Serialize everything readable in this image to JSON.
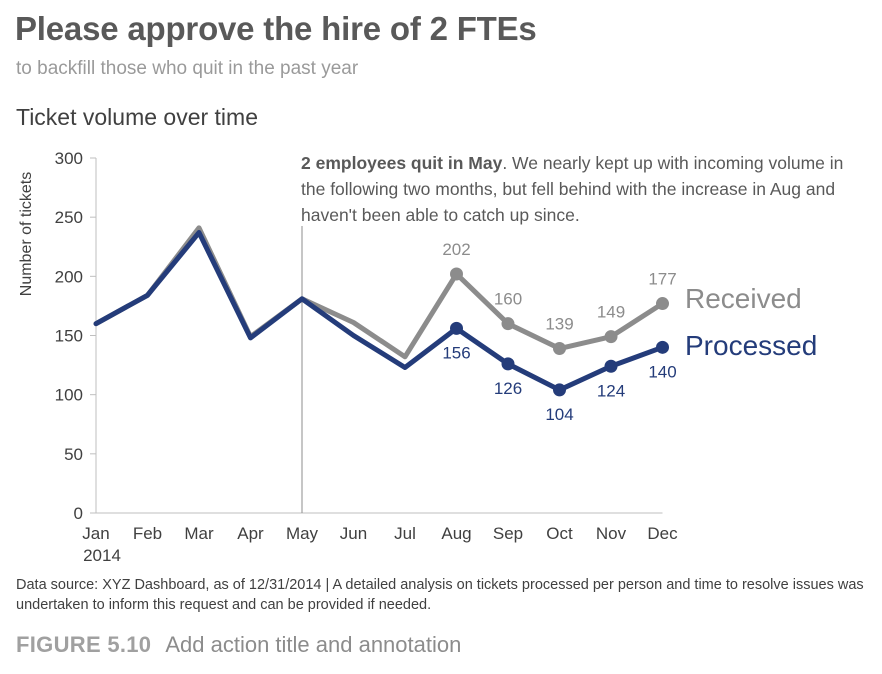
{
  "header": {
    "title": "Please approve the hire of 2 FTEs",
    "subtitle": "to backfill those who quit in the past year"
  },
  "chart_heading": "Ticket volume over time",
  "annotation": {
    "bold": "2 employees quit in May",
    "text": ". We nearly kept up with incoming volume in the following two months, but fell behind with the increase in Aug and haven't been able to catch up since."
  },
  "footnote": "Data source: XYZ Dashboard, as of 12/31/2014  |  A detailed analysis on tickets processed per person and time to resolve issues was undertaken to inform this request and can be provided if needed.",
  "figure": {
    "number": "FIGURE 5.10",
    "caption": "Add action title and annotation"
  },
  "chart_data": {
    "type": "line",
    "title": "Ticket volume over time",
    "ylabel": "Number of tickets",
    "xlabel": "",
    "categories": [
      "Jan",
      "Feb",
      "Mar",
      "Apr",
      "May",
      "Jun",
      "Jul",
      "Aug",
      "Sep",
      "Oct",
      "Nov",
      "Dec"
    ],
    "year_label": "2014",
    "ylim": [
      0,
      300
    ],
    "yticks": [
      0,
      50,
      100,
      150,
      200,
      250,
      300
    ],
    "grid": false,
    "reference_line_at": "May",
    "legend_placement": "direct-label-right",
    "series": [
      {
        "name": "Received",
        "color": "#8c8c8c",
        "values": [
          160,
          184,
          241,
          149,
          181,
          161,
          132,
          202,
          160,
          139,
          149,
          177
        ],
        "labeled_from_index": 7
      },
      {
        "name": "Processed",
        "color": "#243c7a",
        "values": [
          160,
          184,
          237,
          148,
          181,
          150,
          123,
          156,
          126,
          104,
          124,
          140
        ],
        "labeled_from_index": 7
      }
    ]
  }
}
